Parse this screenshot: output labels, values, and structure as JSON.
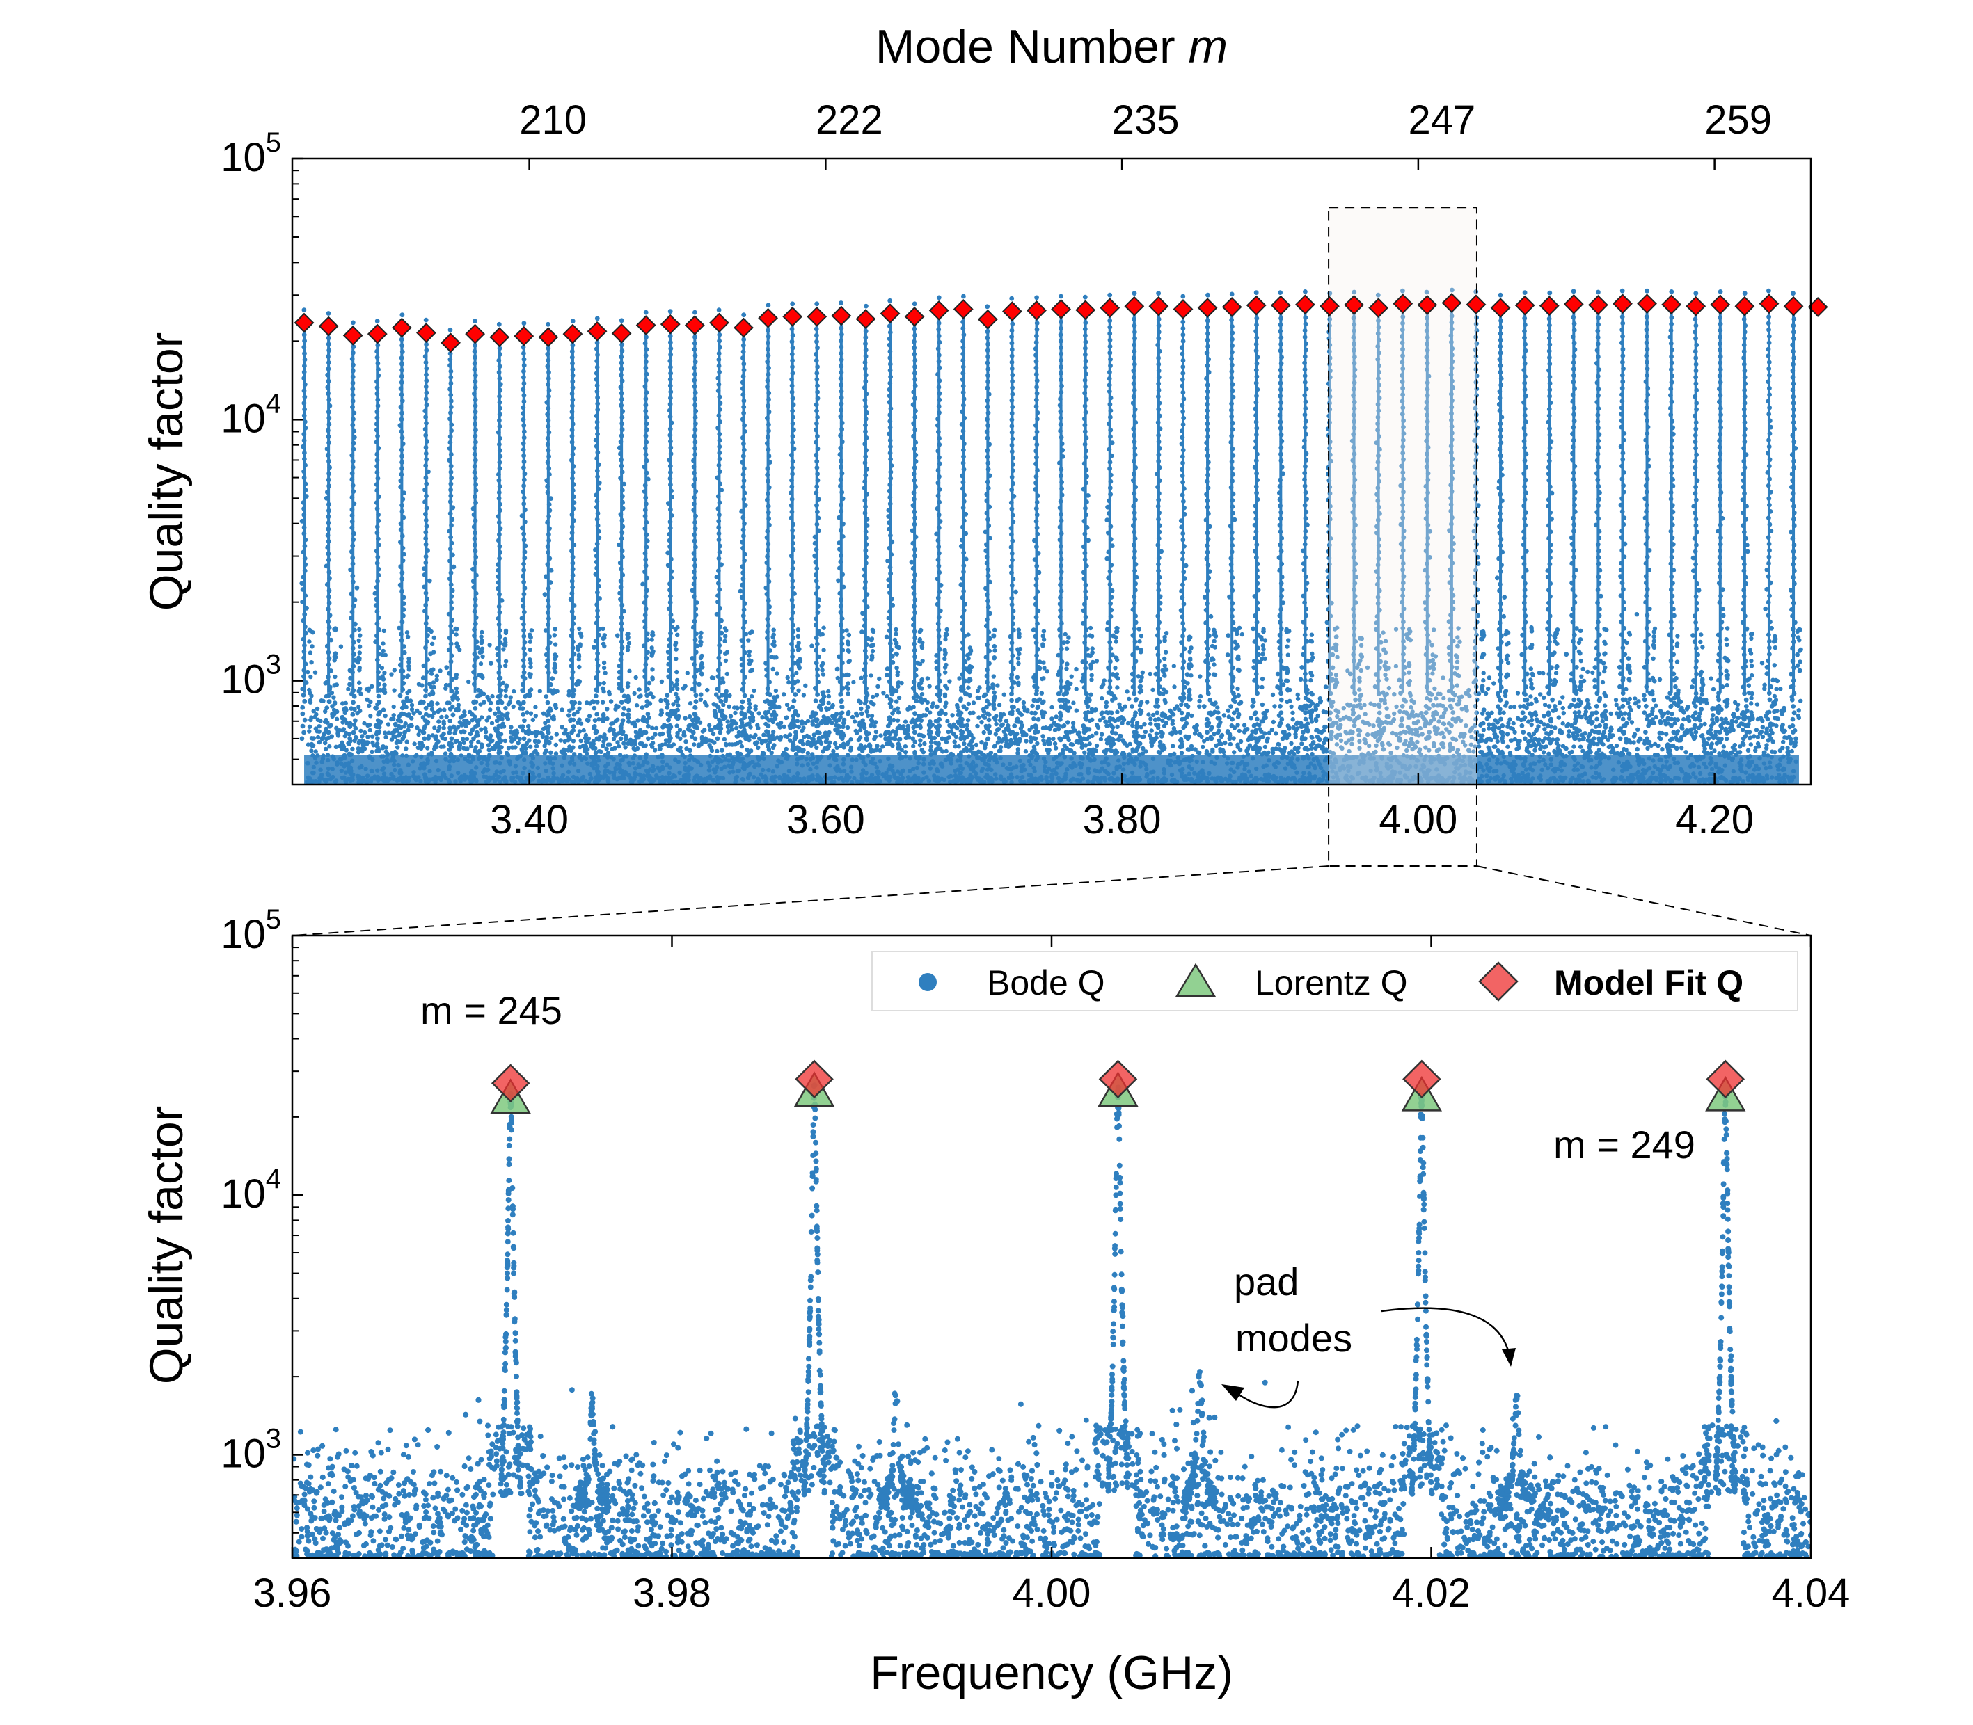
{
  "colors": {
    "bode": "#2f7fbf",
    "lorentz": "#7fc97f",
    "model_fit": "#ee3030",
    "model_fit_top": "#ff0000",
    "axis": "#000000",
    "zoom_box": "#000000"
  },
  "chart_data": [
    {
      "id": "top",
      "type": "scatter",
      "title": "",
      "top_axis": {
        "label_prefix": "Mode Number ",
        "label_var": "m",
        "ticks": [
          {
            "label": "210",
            "x": 3.416
          },
          {
            "label": "222",
            "x": 3.616
          },
          {
            "label": "235",
            "x": 3.816
          },
          {
            "label": "247",
            "x": 4.016
          },
          {
            "label": "259",
            "x": 4.216
          }
        ]
      },
      "xlabel": "",
      "ylabel": "Quality factor",
      "x_scale": "linear",
      "y_scale": "log",
      "xlim": [
        3.24,
        4.265
      ],
      "ylim": [
        400,
        100000
      ],
      "x_ticks": [
        {
          "label": "3.40",
          "value": 3.4
        },
        {
          "label": "3.60",
          "value": 3.6
        },
        {
          "label": "3.80",
          "value": 3.8
        },
        {
          "label": "4.00",
          "value": 4.0
        },
        {
          "label": "4.20",
          "value": 4.2
        }
      ],
      "y_ticks": [
        {
          "base": "10",
          "exp": "3",
          "value": 1000
        },
        {
          "base": "10",
          "exp": "4",
          "value": 10000
        },
        {
          "base": "10",
          "exp": "5",
          "value": 100000
        }
      ],
      "series": [
        {
          "name": "Model Fit Q",
          "marker": "diamond",
          "x_start": 3.248,
          "x_step": 0.01648,
          "values": [
            23500,
            22800,
            21000,
            21300,
            22500,
            21500,
            19700,
            21300,
            20700,
            20900,
            20700,
            21300,
            21800,
            21400,
            23000,
            23200,
            23000,
            23500,
            22500,
            24500,
            24800,
            24800,
            25000,
            24300,
            25500,
            24800,
            26200,
            26500,
            24200,
            26000,
            26200,
            26500,
            26300,
            26800,
            27200,
            27200,
            26500,
            26800,
            27000,
            27400,
            27400,
            27600,
            27200,
            27500,
            26800,
            27800,
            27500,
            28000,
            27600,
            26800,
            27400,
            27300,
            27700,
            27500,
            27800,
            27800,
            27600,
            27200,
            27600,
            27200,
            27800,
            27200,
            27000
          ]
        },
        {
          "name": "Bode Q",
          "marker": "dot",
          "peak_q": 27000,
          "noise_floor": 550
        }
      ],
      "zoom_box": {
        "x": [
          3.9395,
          4.0395
        ],
        "y_top": 65000
      }
    },
    {
      "id": "bottom",
      "type": "scatter",
      "title": "",
      "xlabel": "Frequency (GHz)",
      "ylabel": "Quality factor",
      "x_scale": "linear",
      "y_scale": "log",
      "xlim": [
        3.96,
        4.04
      ],
      "ylim": [
        400,
        100000
      ],
      "x_ticks": [
        {
          "label": "3.96",
          "value": 3.96
        },
        {
          "label": "3.98",
          "value": 3.98
        },
        {
          "label": "4.00",
          "value": 4.0
        },
        {
          "label": "4.02",
          "value": 4.02
        },
        {
          "label": "4.04",
          "value": 4.04
        }
      ],
      "y_ticks": [
        {
          "base": "10",
          "exp": "3",
          "value": 1000
        },
        {
          "base": "10",
          "exp": "4",
          "value": 10000
        },
        {
          "base": "10",
          "exp": "5",
          "value": 100000
        }
      ],
      "legend": {
        "position": "top-right",
        "entries": [
          {
            "name": "Bode Q",
            "marker": "dot"
          },
          {
            "name": "Lorentz Q",
            "marker": "triangle"
          },
          {
            "name": "Model Fit Q",
            "marker": "diamond",
            "bold": true
          }
        ]
      },
      "series": [
        {
          "name": "Model Fit Q",
          "marker": "diamond",
          "x": [
            3.9715,
            3.9875,
            4.0035,
            4.0195,
            4.0355
          ],
          "values": [
            27000,
            28000,
            28000,
            28000,
            28000
          ]
        },
        {
          "name": "Lorentz Q",
          "marker": "triangle",
          "x": [
            3.9715,
            3.9875,
            4.0035,
            4.0195,
            4.0355
          ],
          "values": [
            23500,
            25000,
            25000,
            24000,
            24000
          ]
        },
        {
          "name": "Bode Q",
          "marker": "dot",
          "resonances": [
            3.9715,
            3.9875,
            4.0035,
            4.0195,
            4.0355
          ],
          "pad_modes": [
            {
              "x": 3.9758,
              "q": 1550
            },
            {
              "x": 3.9918,
              "q": 1650
            },
            {
              "x": 4.0078,
              "q": 2100
            },
            {
              "x": 4.0245,
              "q": 1700
            }
          ]
        }
      ],
      "annotations": [
        {
          "text": "m = 245"
        },
        {
          "text": "m = 249"
        },
        {
          "text": "pad"
        },
        {
          "text": "modes"
        }
      ]
    }
  ]
}
